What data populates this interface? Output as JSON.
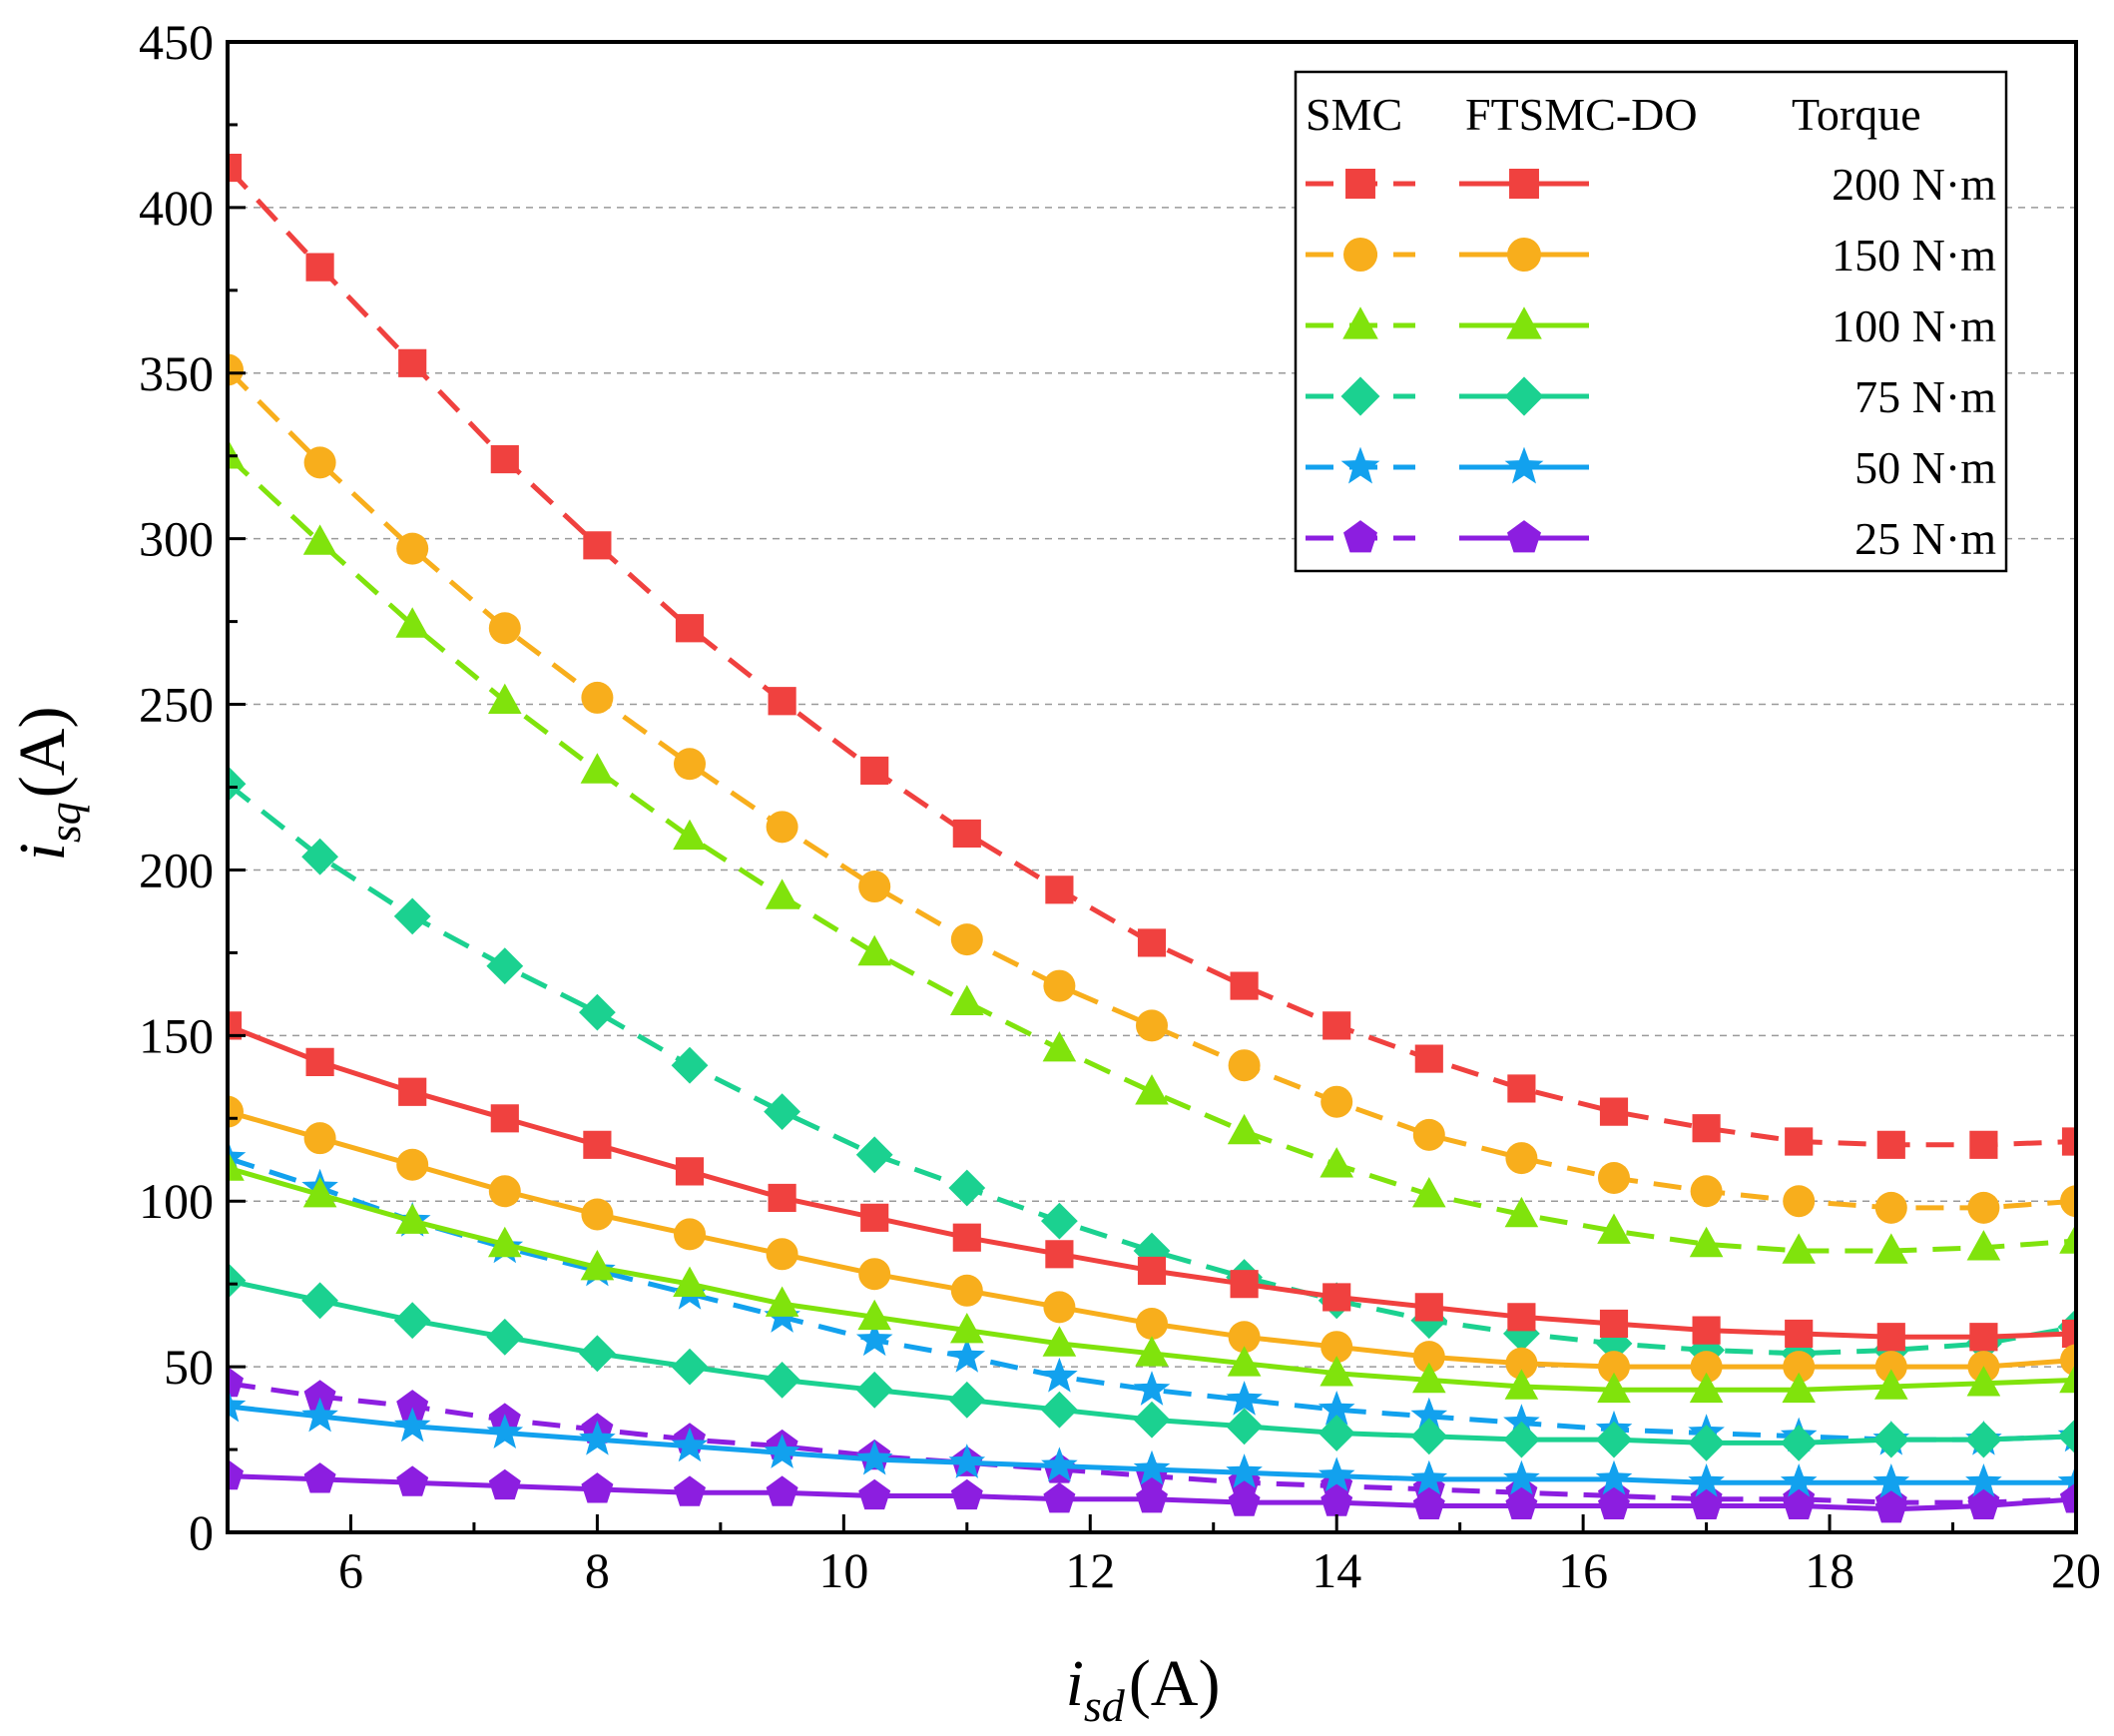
{
  "chart_data": {
    "type": "line",
    "xlabel": {
      "main": "i",
      "sub": "sd",
      "unit": "(A)"
    },
    "ylabel": {
      "main": "i",
      "sub": "sq",
      "unit": "(A)"
    },
    "xlim": [
      5,
      20
    ],
    "ylim": [
      0,
      450
    ],
    "xticks": [
      6,
      8,
      10,
      12,
      14,
      16,
      18,
      20
    ],
    "yticks": [
      0,
      50,
      100,
      150,
      200,
      250,
      300,
      350,
      400,
      450
    ],
    "grid": {
      "y_major": true,
      "style": "dashed"
    },
    "legend": {
      "placement": "top-right",
      "headers": [
        "SMC",
        "FTSMC-DO",
        "Torque"
      ],
      "rows": [
        "200 N·m",
        "150 N·m",
        "100 N·m",
        "75 N·m",
        "50 N·m",
        "25 N·m"
      ]
    },
    "x": [
      5,
      5.75,
      6.5,
      7.25,
      8,
      8.75,
      9.5,
      10.25,
      11,
      11.75,
      12.5,
      13.25,
      14,
      14.75,
      15.5,
      16.25,
      17,
      17.75,
      18.5,
      19.25,
      20
    ],
    "series": [
      {
        "controller": "SMC",
        "torque": "200 N·m",
        "color": "#f0413f",
        "marker": "square",
        "dashed": true,
        "values": [
          412,
          382,
          353,
          324,
          298,
          273,
          251,
          230,
          211,
          194,
          178,
          165,
          153,
          143,
          134,
          127,
          122,
          118,
          117,
          117,
          118
        ]
      },
      {
        "controller": "SMC",
        "torque": "150 N·m",
        "color": "#f8ae1c",
        "marker": "circle",
        "dashed": true,
        "values": [
          351,
          323,
          297,
          273,
          252,
          232,
          213,
          195,
          179,
          165,
          153,
          141,
          130,
          120,
          113,
          107,
          103,
          100,
          98,
          98,
          100
        ]
      },
      {
        "controller": "SMC",
        "torque": "100 N·m",
        "color": "#80e30c",
        "marker": "triangle",
        "dashed": true,
        "values": [
          325,
          299,
          274,
          251,
          230,
          210,
          192,
          175,
          160,
          146,
          133,
          121,
          111,
          102,
          96,
          91,
          87,
          85,
          85,
          86,
          88
        ]
      },
      {
        "controller": "SMC",
        "torque": "75 N·m",
        "color": "#1bd190",
        "marker": "diamond",
        "dashed": true,
        "values": [
          226,
          204,
          186,
          171,
          157,
          141,
          127,
          114,
          104,
          94,
          85,
          77,
          70,
          64,
          60,
          57,
          55,
          54,
          55,
          57,
          62
        ]
      },
      {
        "controller": "SMC",
        "torque": "50 N·m",
        "color": "#12a1ee",
        "marker": "star",
        "dashed": true,
        "values": [
          113,
          104,
          94,
          86,
          79,
          72,
          65,
          58,
          53,
          47,
          43,
          40,
          37,
          35,
          33,
          31,
          30,
          29,
          28,
          28,
          29
        ]
      },
      {
        "controller": "SMC",
        "torque": "25 N·m",
        "color": "#8c1ee0",
        "marker": "pentagon",
        "dashed": true,
        "values": [
          45,
          41,
          38,
          34,
          31,
          28,
          26,
          23,
          21,
          19,
          17,
          15,
          14,
          13,
          12,
          11,
          10,
          10,
          9,
          9,
          10
        ]
      },
      {
        "controller": "FTSMC-DO",
        "torque": "200 N·m",
        "color": "#f0413f",
        "marker": "square",
        "dashed": false,
        "values": [
          153,
          142,
          133,
          125,
          117,
          109,
          101,
          95,
          89,
          84,
          79,
          75,
          71,
          68,
          65,
          63,
          61,
          60,
          59,
          59,
          60
        ]
      },
      {
        "controller": "FTSMC-DO",
        "torque": "150 N·m",
        "color": "#f8ae1c",
        "marker": "circle",
        "dashed": false,
        "values": [
          127,
          119,
          111,
          103,
          96,
          90,
          84,
          78,
          73,
          68,
          63,
          59,
          56,
          53,
          51,
          50,
          50,
          50,
          50,
          50,
          52
        ]
      },
      {
        "controller": "FTSMC-DO",
        "torque": "100 N·m",
        "color": "#80e30c",
        "marker": "triangle",
        "dashed": false,
        "values": [
          110,
          102,
          94,
          87,
          80,
          75,
          69,
          65,
          61,
          57,
          54,
          51,
          48,
          46,
          44,
          43,
          43,
          43,
          44,
          45,
          46
        ]
      },
      {
        "controller": "FTSMC-DO",
        "torque": "75 N·m",
        "color": "#1bd190",
        "marker": "diamond",
        "dashed": false,
        "values": [
          76,
          70,
          64,
          59,
          54,
          50,
          46,
          43,
          40,
          37,
          34,
          32,
          30,
          29,
          28,
          28,
          27,
          27,
          28,
          28,
          29
        ]
      },
      {
        "controller": "FTSMC-DO",
        "torque": "50 N·m",
        "color": "#12a1ee",
        "marker": "star",
        "dashed": false,
        "values": [
          38,
          35,
          32,
          30,
          28,
          26,
          24,
          22,
          21,
          20,
          19,
          18,
          17,
          16,
          16,
          16,
          15,
          15,
          15,
          15,
          15
        ]
      },
      {
        "controller": "FTSMC-DO",
        "torque": "25 N·m",
        "color": "#8c1ee0",
        "marker": "pentagon",
        "dashed": false,
        "values": [
          17,
          16,
          15,
          14,
          13,
          12,
          12,
          11,
          11,
          10,
          10,
          9,
          9,
          8,
          8,
          8,
          8,
          8,
          7,
          8,
          10
        ]
      }
    ]
  }
}
